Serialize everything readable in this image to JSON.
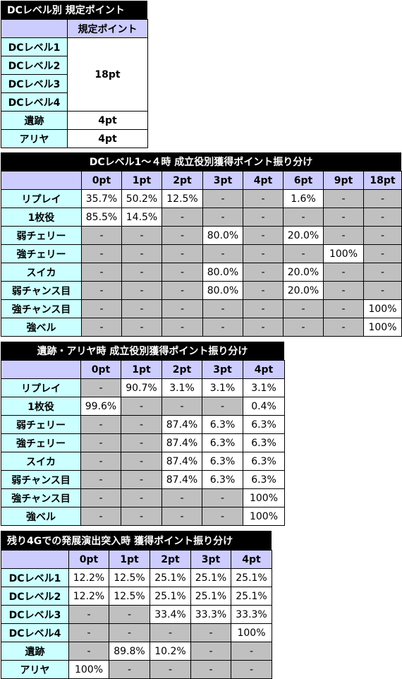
{
  "t1": {
    "title": "DCレベル別 規定ポイント",
    "col_header": "規定ポイント",
    "rows": [
      "DCレベル1",
      "DCレベル2",
      "DCレベル3",
      "DCレベル4",
      "遺跡",
      "アリヤ"
    ],
    "merged_value": "18pt",
    "row_values": [
      "4pt",
      "4pt"
    ]
  },
  "t2": {
    "title": "DCレベル1～４時 成立役別獲得ポイント振り分け",
    "cols": [
      "0pt",
      "1pt",
      "2pt",
      "3pt",
      "4pt",
      "6pt",
      "9pt",
      "18pt"
    ],
    "rows": [
      {
        "label": "リプレイ",
        "cells": [
          "35.7%",
          "50.2%",
          "12.5%",
          "-",
          "-",
          "1.6%",
          "-",
          "-"
        ]
      },
      {
        "label": "1枚役",
        "cells": [
          "85.5%",
          "14.5%",
          "-",
          "-",
          "-",
          "-",
          "-",
          "-"
        ]
      },
      {
        "label": "弱チェリー",
        "cells": [
          "-",
          "-",
          "-",
          "80.0%",
          "-",
          "20.0%",
          "-",
          "-"
        ]
      },
      {
        "label": "強チェリー",
        "cells": [
          "-",
          "-",
          "-",
          "-",
          "-",
          "-",
          "100%",
          "-"
        ]
      },
      {
        "label": "スイカ",
        "cells": [
          "-",
          "-",
          "-",
          "80.0%",
          "-",
          "20.0%",
          "-",
          "-"
        ]
      },
      {
        "label": "弱チャンス目",
        "cells": [
          "-",
          "-",
          "-",
          "80.0%",
          "-",
          "20.0%",
          "-",
          "-"
        ]
      },
      {
        "label": "強チャンス目",
        "cells": [
          "-",
          "-",
          "-",
          "-",
          "-",
          "-",
          "-",
          "100%"
        ]
      },
      {
        "label": "強ベル",
        "cells": [
          "-",
          "-",
          "-",
          "-",
          "-",
          "-",
          "-",
          "100%"
        ]
      }
    ]
  },
  "t3": {
    "title": "遺跡・アリヤ時 成立役別獲得ポイント振り分け",
    "cols": [
      "0pt",
      "1pt",
      "2pt",
      "3pt",
      "4pt"
    ],
    "rows": [
      {
        "label": "リプレイ",
        "cells": [
          "-",
          "90.7%",
          "3.1%",
          "3.1%",
          "3.1%"
        ]
      },
      {
        "label": "1枚役",
        "cells": [
          "99.6%",
          "-",
          "-",
          "-",
          "0.4%"
        ]
      },
      {
        "label": "弱チェリー",
        "cells": [
          "-",
          "-",
          "87.4%",
          "6.3%",
          "6.3%"
        ]
      },
      {
        "label": "強チェリー",
        "cells": [
          "-",
          "-",
          "87.4%",
          "6.3%",
          "6.3%"
        ]
      },
      {
        "label": "スイカ",
        "cells": [
          "-",
          "-",
          "87.4%",
          "6.3%",
          "6.3%"
        ]
      },
      {
        "label": "弱チャンス目",
        "cells": [
          "-",
          "-",
          "87.4%",
          "6.3%",
          "6.3%"
        ]
      },
      {
        "label": "強チャンス目",
        "cells": [
          "-",
          "-",
          "-",
          "-",
          "100%"
        ]
      },
      {
        "label": "強ベル",
        "cells": [
          "-",
          "-",
          "-",
          "-",
          "100%"
        ]
      }
    ]
  },
  "t4": {
    "title": "残り4Gでの発展演出突入時 獲得ポイント振り分け",
    "cols": [
      "0pt",
      "1pt",
      "2pt",
      "3pt",
      "4pt"
    ],
    "rows": [
      {
        "label": "DCレベル1",
        "cells": [
          "12.2%",
          "12.5%",
          "25.1%",
          "25.1%",
          "25.1%"
        ]
      },
      {
        "label": "DCレベル2",
        "cells": [
          "12.2%",
          "12.5%",
          "25.1%",
          "25.1%",
          "25.1%"
        ]
      },
      {
        "label": "DCレベル3",
        "cells": [
          "-",
          "-",
          "33.4%",
          "33.3%",
          "33.3%"
        ]
      },
      {
        "label": "DCレベル4",
        "cells": [
          "-",
          "-",
          "-",
          "-",
          "100%"
        ]
      },
      {
        "label": "遺跡",
        "cells": [
          "-",
          "89.8%",
          "10.2%",
          "-",
          "-"
        ]
      },
      {
        "label": "アリヤ",
        "cells": [
          "100%",
          "-",
          "-",
          "-",
          "-"
        ]
      }
    ]
  }
}
